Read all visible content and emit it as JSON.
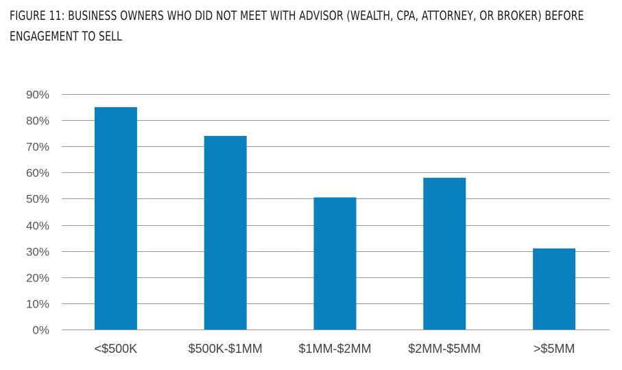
{
  "chart_data": {
    "type": "bar",
    "title": "Figure 11: Business owners who did not meet with advisor (wealth, CPA, attorney, or broker) before engagement to sell",
    "categories": [
      "<$500K",
      "$500K-$1MM",
      "$1MM-$2MM",
      "$2MM-$5MM",
      ">$5MM"
    ],
    "values": [
      85,
      74,
      50.5,
      58,
      31
    ],
    "ylim": [
      0,
      90
    ],
    "yticks": [
      0,
      10,
      20,
      30,
      40,
      50,
      60,
      70,
      80,
      90
    ],
    "ytick_suffix": "%",
    "grid": true,
    "legend": "none",
    "bar_color": "#0a80bf",
    "grid_color": "#999999",
    "axis_color": "#999999"
  }
}
